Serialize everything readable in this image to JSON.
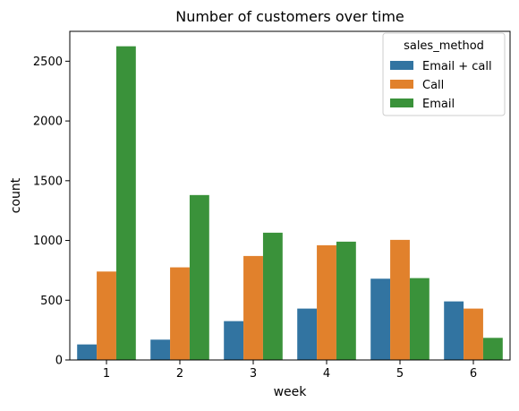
{
  "chart_data": {
    "type": "bar",
    "title": "Number of customers over time",
    "xlabel": "week",
    "ylabel": "count",
    "categories": [
      "1",
      "2",
      "3",
      "4",
      "5",
      "6"
    ],
    "ylim": [
      0,
      2750
    ],
    "yticks": [
      0,
      500,
      1000,
      1500,
      2000,
      2500
    ],
    "legend": {
      "title": "sales_method",
      "position": "top-right"
    },
    "series": [
      {
        "name": "Email + call",
        "color": "#3274a1",
        "values": [
          130,
          170,
          325,
          430,
          680,
          490
        ]
      },
      {
        "name": "Call",
        "color": "#e1812c",
        "values": [
          740,
          775,
          870,
          960,
          1005,
          430
        ]
      },
      {
        "name": "Email",
        "color": "#3a923a",
        "values": [
          2625,
          1380,
          1065,
          990,
          685,
          185
        ]
      }
    ]
  }
}
